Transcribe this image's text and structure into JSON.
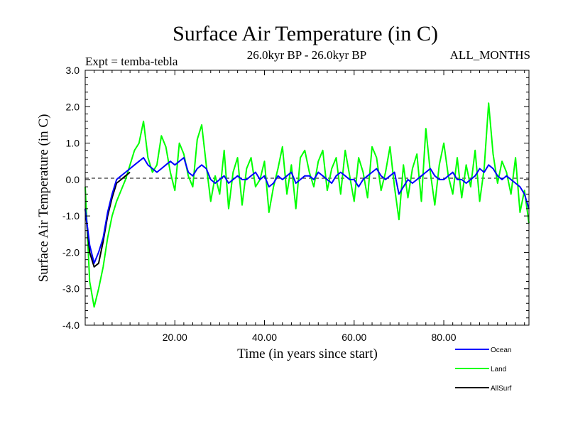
{
  "chart_data": {
    "type": "line",
    "title": "Surface Air Temperature (in C)",
    "subtitle": "26.0kyr BP - 26.0kyr BP",
    "experiment_label": "Expt = temba-tebla",
    "months_label": "ALL_MONTHS",
    "xlabel": "Time (in years since start)",
    "ylabel": "Surface Air Temperature (in C)",
    "xlim": [
      0,
      99
    ],
    "ylim": [
      -4.0,
      3.0
    ],
    "xticks": [
      20,
      40,
      60,
      80
    ],
    "xtick_labels": [
      "20.00",
      "40.00",
      "60.00",
      "80.00"
    ],
    "yticks": [
      3.0,
      2.0,
      1.0,
      0.0,
      -1.0,
      -2.0,
      -3.0,
      -4.0
    ],
    "ytick_labels": [
      "3.0",
      "2.0",
      "1.0",
      "0.0",
      "-1.0",
      "-2.0",
      "-3.0",
      "-4.0"
    ],
    "zero_line": true,
    "legend_position": "below-right",
    "series": [
      {
        "name": "Ocean",
        "color": "#0000ff",
        "x": [
          0,
          1,
          2,
          3,
          4,
          5,
          6,
          7,
          8,
          9,
          10,
          11,
          12,
          13,
          14,
          15,
          16,
          17,
          18,
          19,
          20,
          21,
          22,
          23,
          24,
          25,
          26,
          27,
          28,
          29,
          30,
          31,
          32,
          33,
          34,
          35,
          36,
          37,
          38,
          39,
          40,
          41,
          42,
          43,
          44,
          45,
          46,
          47,
          48,
          49,
          50,
          51,
          52,
          53,
          54,
          55,
          56,
          57,
          58,
          59,
          60,
          61,
          62,
          63,
          64,
          65,
          66,
          67,
          68,
          69,
          70,
          71,
          72,
          73,
          74,
          75,
          76,
          77,
          78,
          79,
          80,
          81,
          82,
          83,
          84,
          85,
          86,
          87,
          88,
          89,
          90,
          91,
          92,
          93,
          94,
          95,
          96,
          97,
          98,
          99
        ],
        "values": [
          -0.8,
          -1.8,
          -2.3,
          -2.0,
          -1.6,
          -0.9,
          -0.4,
          0.0,
          0.1,
          0.2,
          0.3,
          0.4,
          0.5,
          0.6,
          0.4,
          0.3,
          0.2,
          0.3,
          0.4,
          0.5,
          0.4,
          0.5,
          0.6,
          0.2,
          0.1,
          0.3,
          0.4,
          0.3,
          0.0,
          -0.1,
          0.0,
          0.1,
          -0.1,
          0.0,
          0.1,
          0.0,
          0.0,
          0.1,
          0.2,
          0.0,
          0.1,
          -0.2,
          -0.1,
          0.1,
          0.0,
          0.1,
          0.2,
          -0.1,
          0.0,
          0.1,
          0.1,
          0.0,
          0.2,
          0.1,
          0.0,
          -0.1,
          0.1,
          0.2,
          0.1,
          0.0,
          0.0,
          -0.2,
          0.0,
          0.1,
          0.2,
          0.3,
          0.1,
          0.0,
          0.1,
          0.2,
          -0.4,
          -0.2,
          0.0,
          -0.1,
          0.0,
          0.1,
          0.2,
          0.3,
          0.1,
          0.0,
          0.0,
          0.1,
          0.2,
          0.0,
          0.0,
          -0.1,
          0.0,
          0.1,
          0.3,
          0.2,
          0.4,
          0.3,
          0.1,
          0.0,
          0.1,
          0.0,
          -0.1,
          -0.2,
          -0.4,
          -0.8
        ]
      },
      {
        "name": "Land",
        "color": "#00ff00",
        "x": [
          0,
          1,
          2,
          3,
          4,
          5,
          6,
          7,
          8,
          9,
          10,
          11,
          12,
          13,
          14,
          15,
          16,
          17,
          18,
          19,
          20,
          21,
          22,
          23,
          24,
          25,
          26,
          27,
          28,
          29,
          30,
          31,
          32,
          33,
          34,
          35,
          36,
          37,
          38,
          39,
          40,
          41,
          42,
          43,
          44,
          45,
          46,
          47,
          48,
          49,
          50,
          51,
          52,
          53,
          54,
          55,
          56,
          57,
          58,
          59,
          60,
          61,
          62,
          63,
          64,
          65,
          66,
          67,
          68,
          69,
          70,
          71,
          72,
          73,
          74,
          75,
          76,
          77,
          78,
          79,
          80,
          81,
          82,
          83,
          84,
          85,
          86,
          87,
          88,
          89,
          90,
          91,
          92,
          93,
          94,
          95,
          96,
          97,
          98,
          99
        ],
        "values": [
          -0.2,
          -2.8,
          -3.5,
          -3.0,
          -2.4,
          -1.6,
          -1.0,
          -0.6,
          -0.3,
          0.0,
          0.4,
          0.8,
          1.0,
          1.6,
          0.6,
          0.2,
          0.4,
          1.2,
          0.9,
          0.2,
          -0.3,
          1.0,
          0.7,
          0.1,
          -0.2,
          1.1,
          1.5,
          0.4,
          -0.6,
          0.1,
          -0.4,
          0.8,
          -0.8,
          0.2,
          0.6,
          -0.7,
          0.3,
          0.6,
          -0.2,
          0.0,
          0.5,
          -0.9,
          -0.2,
          0.3,
          0.9,
          -0.4,
          0.4,
          -0.8,
          0.6,
          0.8,
          0.2,
          -0.2,
          0.5,
          0.8,
          -0.3,
          0.3,
          0.6,
          -0.4,
          0.8,
          0.1,
          -0.6,
          0.6,
          0.2,
          -0.5,
          0.9,
          0.6,
          -0.3,
          0.2,
          0.9,
          -0.2,
          -1.1,
          0.4,
          -0.5,
          0.3,
          0.7,
          -0.6,
          1.4,
          0.2,
          -0.7,
          0.4,
          1.0,
          0.1,
          -0.4,
          0.6,
          -0.5,
          0.4,
          -0.2,
          0.8,
          -0.6,
          0.3,
          2.1,
          0.7,
          -0.1,
          0.5,
          0.2,
          -0.4,
          0.6,
          -0.9,
          -0.3,
          -1.2
        ]
      },
      {
        "name": "AllSurf",
        "color": "#000000",
        "x": [
          0,
          1,
          2,
          3,
          4,
          5,
          6,
          7,
          8,
          9,
          10
        ],
        "values": [
          -0.8,
          -2.0,
          -2.4,
          -2.3,
          -1.7,
          -1.0,
          -0.5,
          -0.1,
          0.0,
          0.1,
          0.2
        ]
      }
    ]
  }
}
